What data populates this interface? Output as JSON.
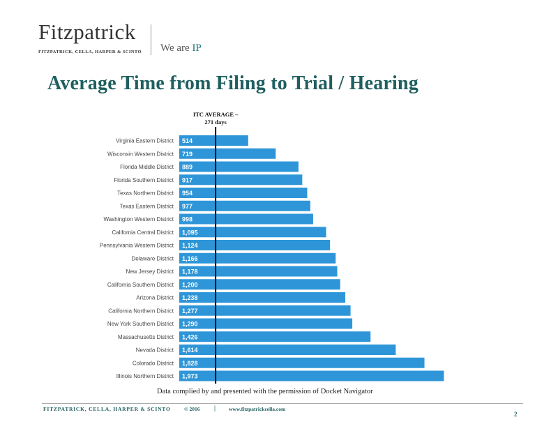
{
  "header": {
    "logo_name": "Fitzpatrick",
    "logo_subtitle": "FITZPATRICK, CELLA, HARPER & SCINTO",
    "tagline_prefix": "We are ",
    "tagline_accent": "IP"
  },
  "chart_data": {
    "type": "bar",
    "orientation": "horizontal",
    "title": "Average Time from Filing to Trial / Hearing",
    "categories": [
      "Virginia Eastern District",
      "Wisconsin Western District",
      "Florida Middle District",
      "Florida Southern District",
      "Texas Northern District",
      "Texas Eastern District",
      "Washington Western District",
      "California Central District",
      "Pennsylvania Western District",
      "Delaware District",
      "New Jersey District",
      "California Southern District",
      "Arizona District",
      "California Northern District",
      "New York Southern District",
      "Massachusetts District",
      "Nevada District",
      "Colorado District",
      "Illinois Northern District"
    ],
    "values": [
      514,
      719,
      889,
      917,
      954,
      977,
      998,
      1095,
      1124,
      1166,
      1178,
      1200,
      1238,
      1277,
      1290,
      1426,
      1614,
      1828,
      1973
    ],
    "value_labels": [
      "514",
      "719",
      "889",
      "917",
      "954",
      "977",
      "998",
      "1,095",
      "1,124",
      "1,166",
      "1,178",
      "1,200",
      "1,238",
      "1,277",
      "1,290",
      "1,426",
      "1,614",
      "1,828",
      "1,973"
    ],
    "xlim": [
      0,
      2080
    ],
    "reference_line": {
      "value": 271,
      "label_line1": "ITC AVERAGE –",
      "label_line2": "271 days"
    },
    "bar_color": "#2e96d8",
    "source_note": "Data complied by and presented with the permission of Docket Navigator"
  },
  "footer": {
    "firm": "FITZPATRICK, CELLA, HARPER & SCINTO",
    "copyright": "© 2016",
    "separator": "|",
    "url": "www.fitzpatrickcella.com",
    "page_number": "2"
  }
}
